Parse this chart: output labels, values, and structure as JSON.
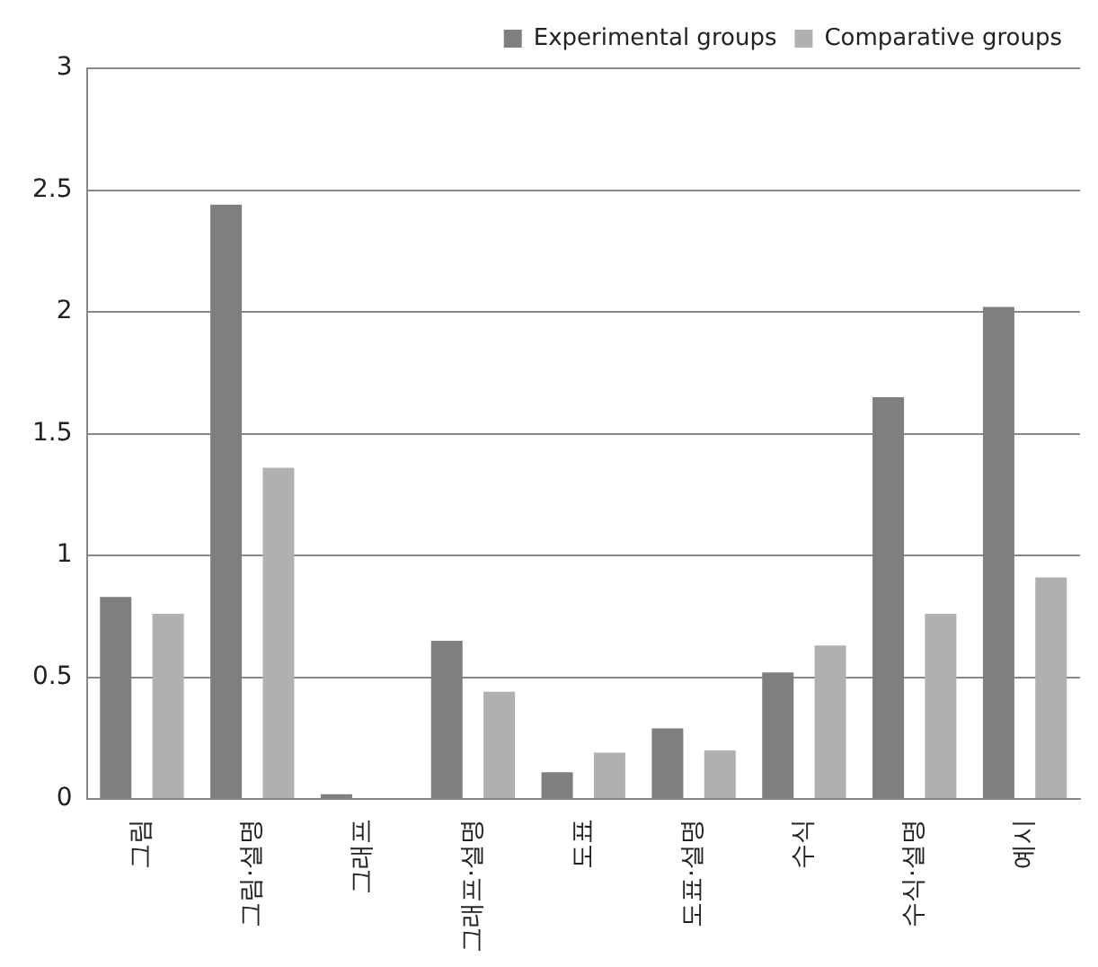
{
  "chart_data": {
    "type": "bar",
    "categories": [
      "그림",
      "그림·설명",
      "그래프",
      "그래프·설명",
      "도표",
      "도표·설명",
      "수식",
      "수식·설명",
      "예시"
    ],
    "series": [
      {
        "name": "Experimental groups",
        "color": "#7f7f7f",
        "values": [
          0.83,
          2.44,
          0.02,
          0.65,
          0.11,
          0.29,
          0.52,
          1.65,
          2.02
        ]
      },
      {
        "name": "Comparative groups",
        "color": "#b0b0b0",
        "values": [
          0.76,
          1.36,
          0,
          0.44,
          0.19,
          0.2,
          0.63,
          0.76,
          0.91
        ]
      }
    ],
    "ylim": [
      0,
      3
    ],
    "yticks": [
      0,
      0.5,
      1,
      1.5,
      2,
      2.5,
      3
    ],
    "grid": "y",
    "legend": "top right"
  }
}
